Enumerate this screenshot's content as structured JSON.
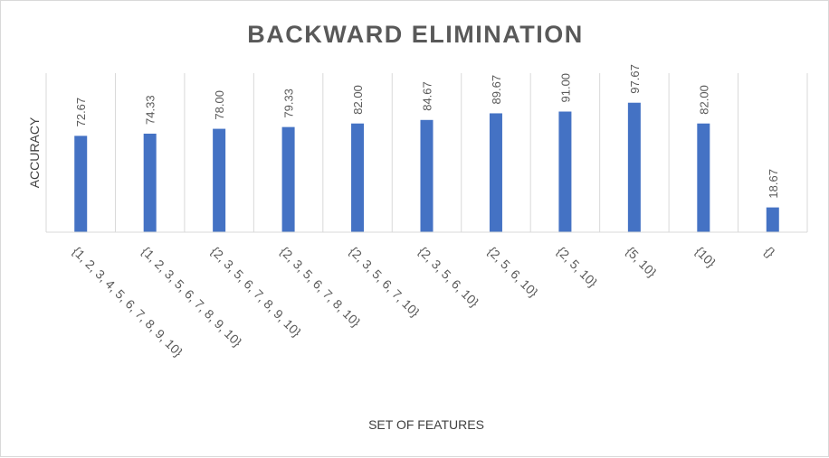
{
  "chart_data": {
    "type": "bar",
    "title": "BACKWARD ELIMINATION",
    "xlabel": "SET OF FEATURES",
    "ylabel": "ACCURACY",
    "categories": [
      "{1, 2, 3, 4, 5, 6, 7, 8, 9, 10}",
      "{1, 2, 3, 5, 6, 7, 8, 9, 10}",
      "{2, 3, 5, 6, 7, 8, 9, 10}",
      "{2, 3, 5, 6, 7, 8, 10}",
      "{2, 3, 5, 6, 7, 10}",
      "{2, 3, 5, 6, 10}",
      "{2, 5, 6, 10}",
      "{2, 5, 10}",
      "{5, 10}",
      "{10}",
      "{}"
    ],
    "values": [
      72.67,
      74.33,
      78.0,
      79.33,
      82.0,
      84.67,
      89.67,
      91.0,
      97.67,
      82.0,
      18.67
    ],
    "data_labels": [
      "72.67",
      "74.33",
      "78.00",
      "79.33",
      "82.00",
      "84.67",
      "89.67",
      "91.00",
      "97.67",
      "82.00",
      "18.67"
    ],
    "ylim": [
      0,
      100
    ],
    "bar_color": "#4472C4",
    "grid": "vertical-category-lines",
    "legend": "none"
  }
}
